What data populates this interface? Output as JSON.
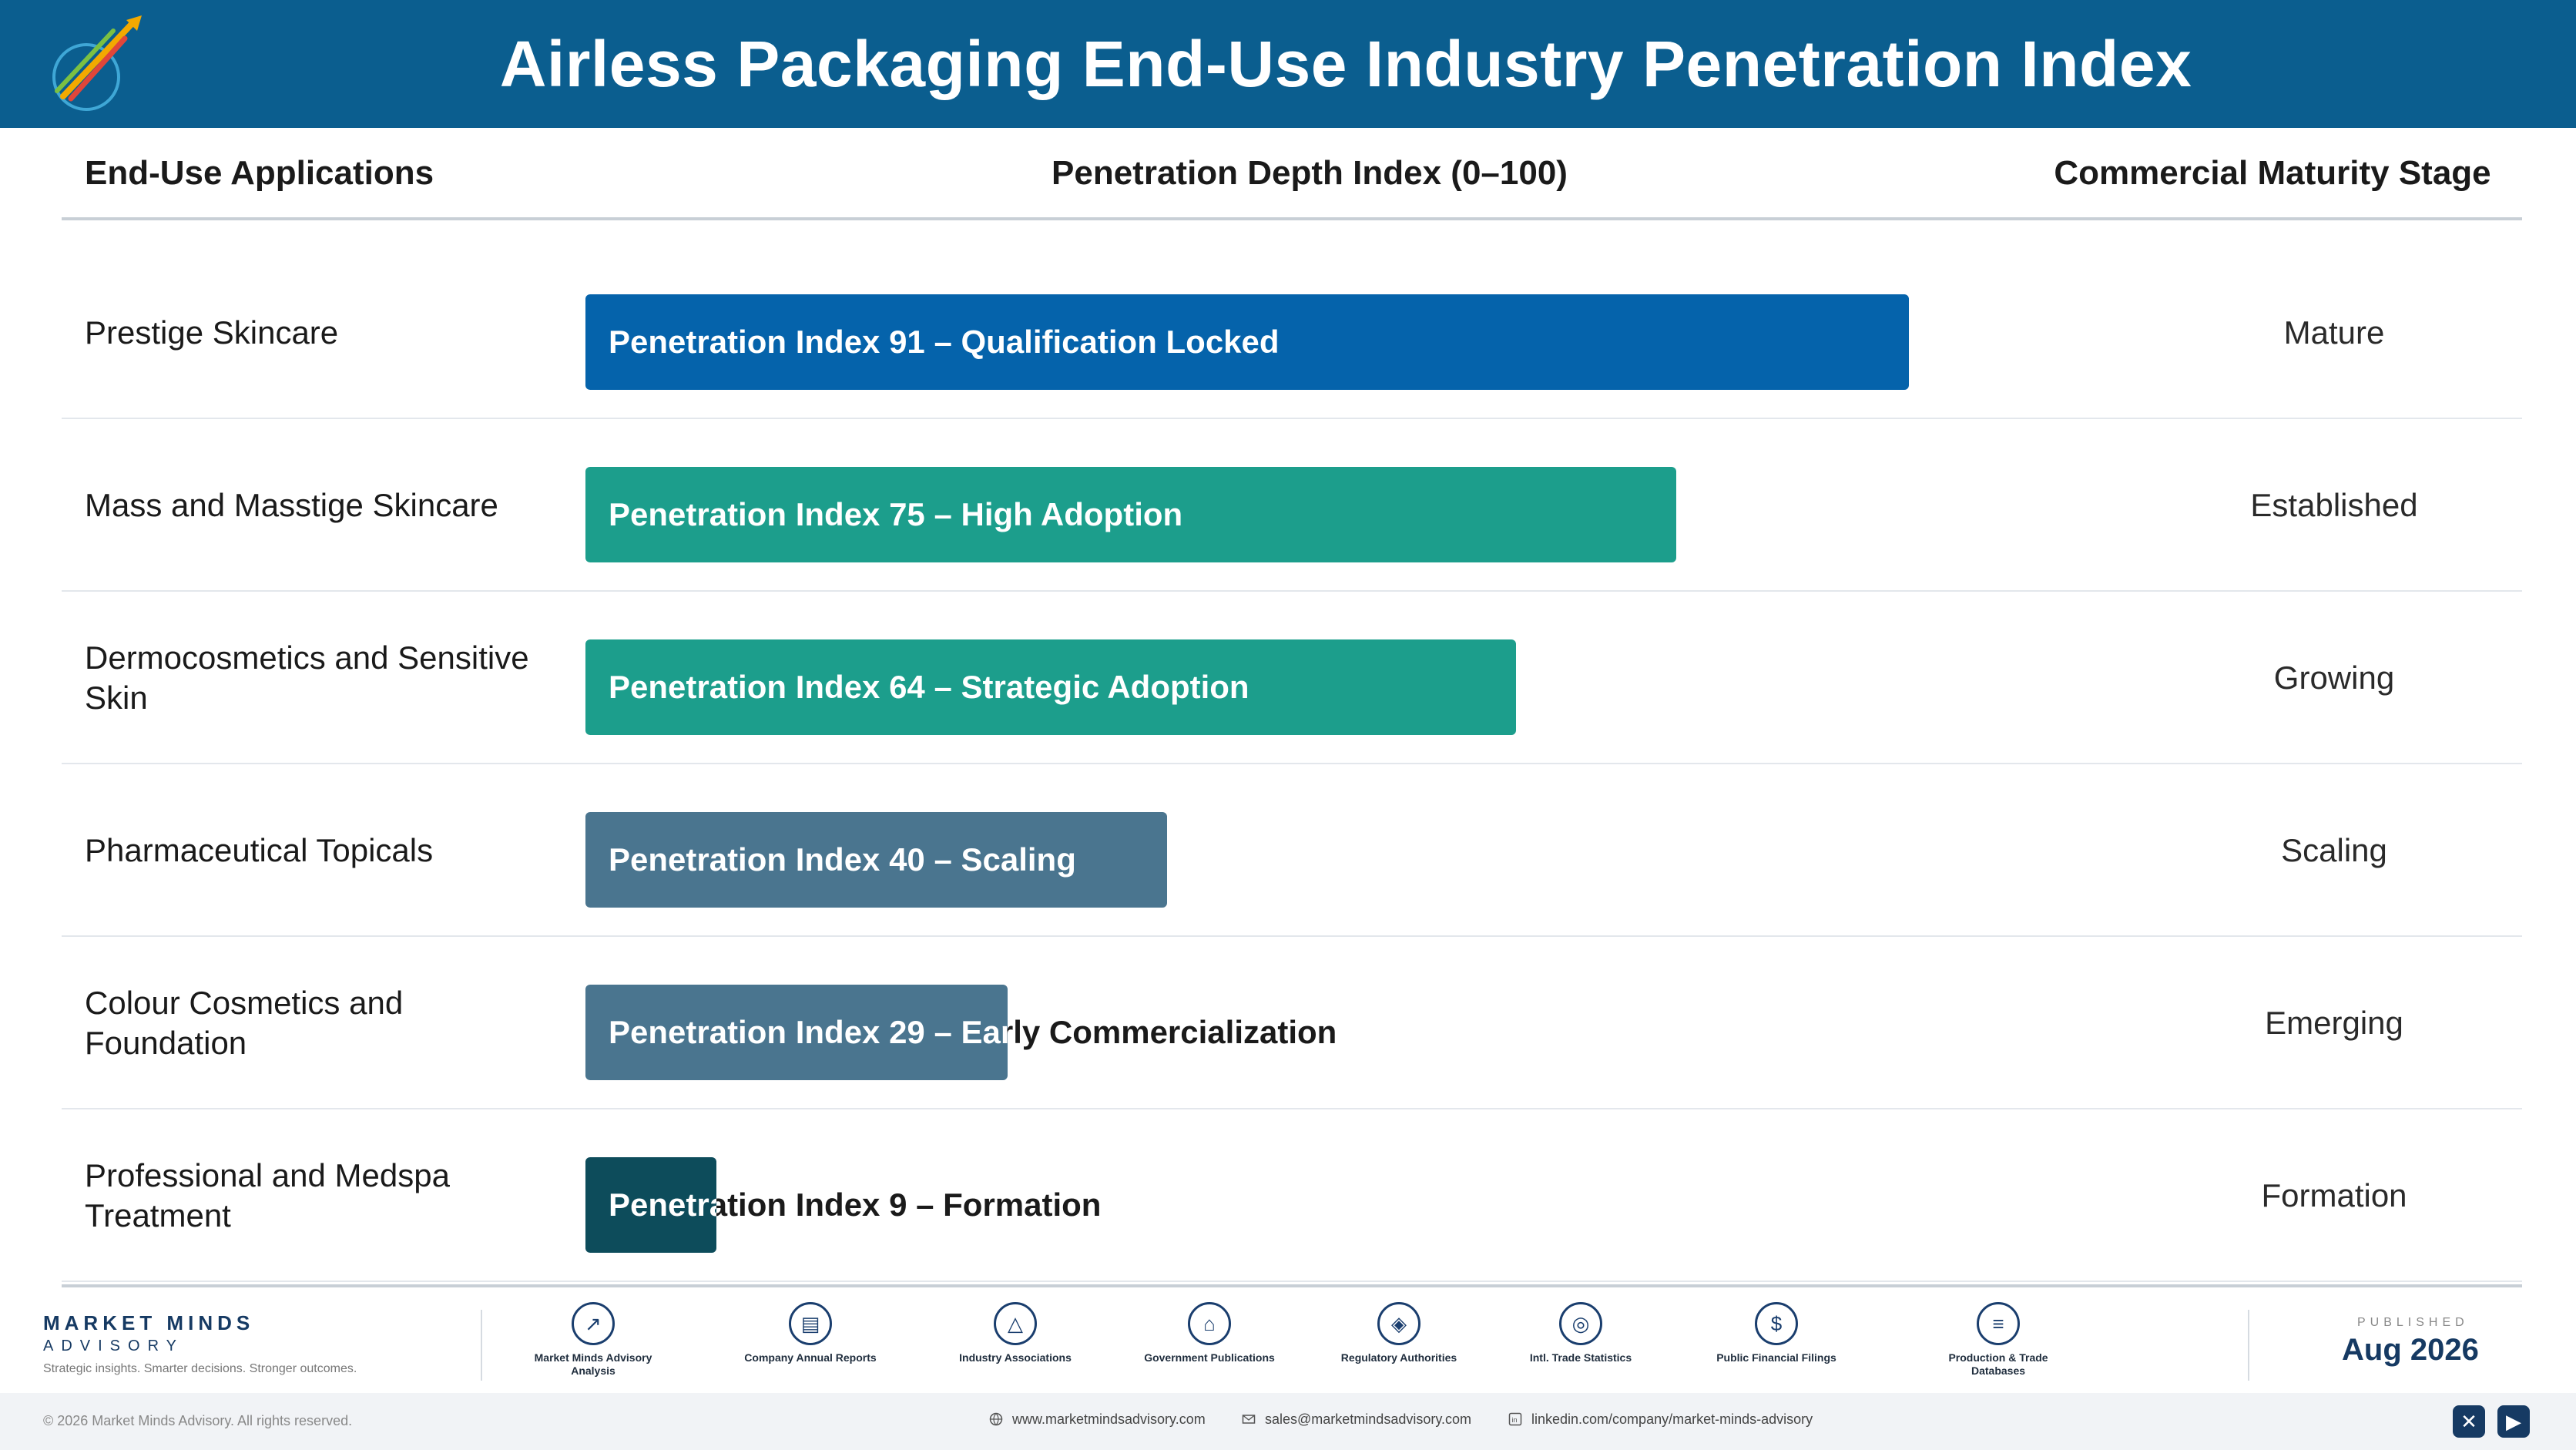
{
  "header": {
    "title": "Airless Packaging End-Use Industry Penetration Index"
  },
  "columns": {
    "applications": "End-Use Applications",
    "index": "Penetration Depth Index (0–100)",
    "stage": "Commercial Maturity Stage"
  },
  "chart_data": {
    "type": "bar",
    "orientation": "horizontal",
    "xlim": [
      0,
      100
    ],
    "categories": [
      "Prestige Skincare",
      "Mass and Masstige Skincare",
      "Dermocosmetics and Sensitive Skin",
      "Pharmaceutical Topicals",
      "Colour Cosmetics and Foundation",
      "Professional and Medspa Treatment"
    ],
    "values": [
      91,
      75,
      64,
      40,
      29,
      9
    ],
    "bar_labels": [
      "Penetration Index 91 – Qualification Locked",
      "Penetration Index 75 – High Adoption",
      "Penetration Index 64 – Strategic Adoption",
      "Penetration Index 40 – Scaling",
      "Penetration Index 29 – Early Commercialization",
      "Penetration Index 9 – Formation"
    ],
    "stages": [
      "Mature",
      "Established",
      "Growing",
      "Scaling",
      "Emerging",
      "Formation"
    ],
    "colors": [
      "#0563ab",
      "#1c9e8c",
      "#1c9e8c",
      "#4a758f",
      "#4a758f",
      "#0d4c5b"
    ]
  },
  "footer": {
    "brand_name": "MARKET MINDS",
    "brand_sub": "ADVISORY",
    "brand_tagline": "Strategic insights. Smarter decisions. Stronger outcomes.",
    "sources": [
      {
        "label": "Market Minds Advisory Analysis",
        "icon": "trend-chart-icon"
      },
      {
        "label": "Company Annual Reports",
        "icon": "document-icon"
      },
      {
        "label": "Industry Associations",
        "icon": "network-icon"
      },
      {
        "label": "Government Publications",
        "icon": "government-building-icon"
      },
      {
        "label": "Regulatory Authorities",
        "icon": "shield-check-icon"
      },
      {
        "label": "Intl. Trade Statistics",
        "icon": "globe-icon"
      },
      {
        "label": "Public Financial Filings",
        "icon": "dollar-coin-icon"
      },
      {
        "label": "Production & Trade Databases",
        "icon": "database-icon"
      }
    ],
    "published_label": "PUBLISHED",
    "published_date": "Aug 2026",
    "copyright": "© 2026 Market Minds Advisory. All rights reserved.",
    "website": "www.marketmindsadvisory.com",
    "email": "sales@marketmindsadvisory.com",
    "linkedin": "linkedin.com/company/market-minds-advisory"
  }
}
